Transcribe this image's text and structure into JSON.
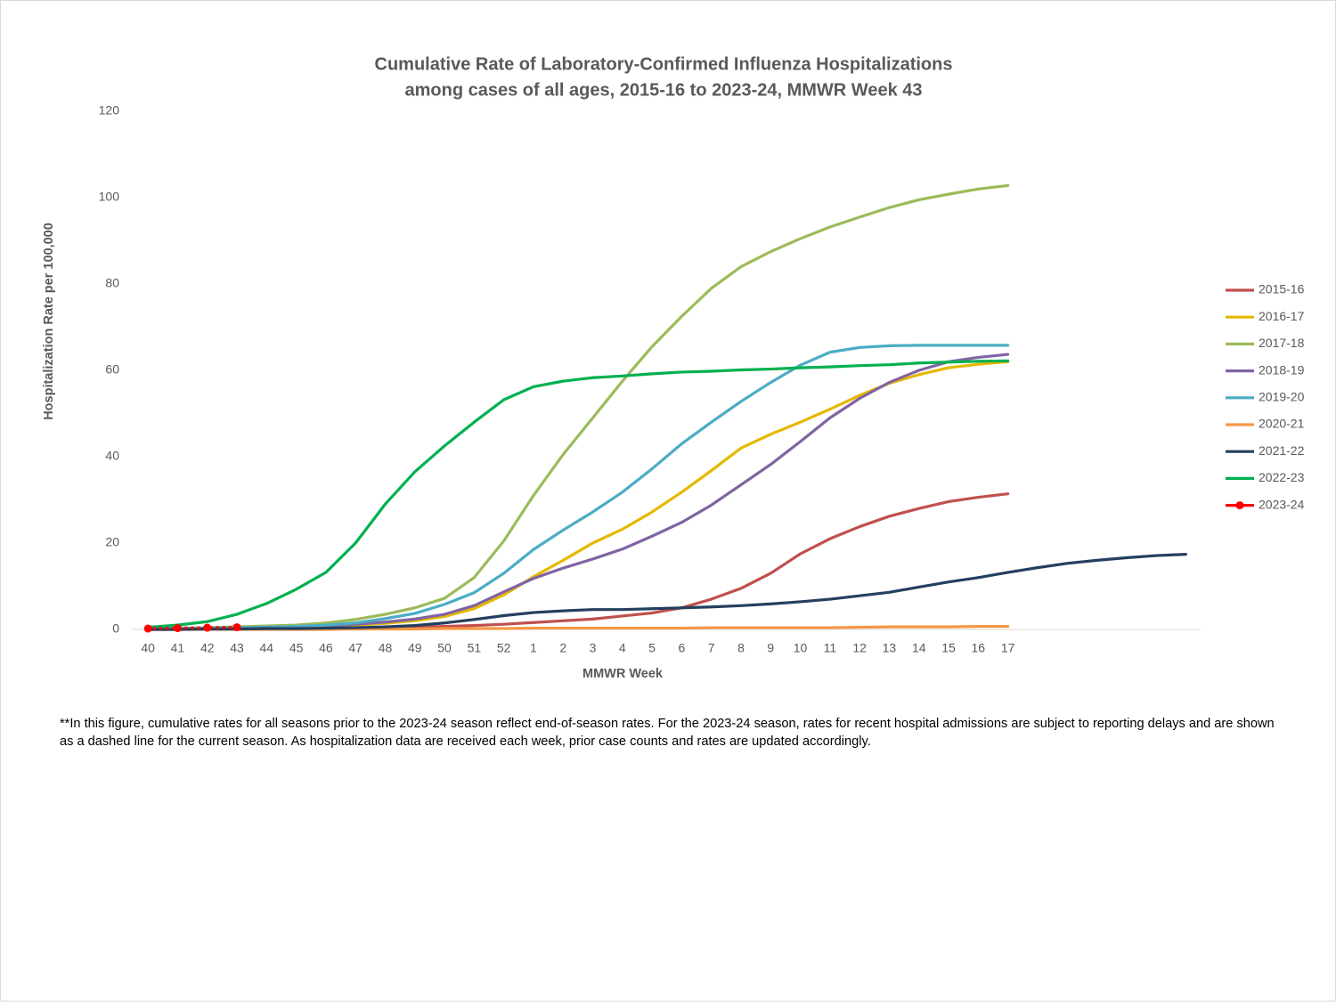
{
  "chart_data": {
    "type": "line",
    "title": [
      "Cumulative Rate of Laboratory-Confirmed Influenza Hospitalizations",
      "among cases of all ages, 2015-16 to 2023-24, MMWR  Week 43"
    ],
    "x_label": "MMWR Week",
    "y_label": "Hospitalization  Rate per 100,000",
    "note": "**In this figure, cumulative rates for all seasons prior to the 2023-24 season reflect end-of-season rates. For the 2023-24 season, rates for recent hospital admissions are subject to reporting delays and are shown as a dashed line for the current season. As hospitalization data are received each week, prior case counts and rates are updated accordingly.",
    "categories": [
      "40",
      "41",
      "42",
      "43",
      "44",
      "45",
      "46",
      "47",
      "48",
      "49",
      "50",
      "51",
      "52",
      "1",
      "2",
      "3",
      "4",
      "5",
      "6",
      "7",
      "8",
      "9",
      "10",
      "11",
      "12",
      "13",
      "14",
      "15",
      "16",
      "17",
      null,
      null,
      null,
      null,
      null,
      null
    ],
    "ylim": [
      0,
      120
    ],
    "yticks": [
      0,
      20,
      40,
      60,
      80,
      100,
      120
    ],
    "grid": false,
    "legend": "right",
    "series": [
      {
        "name": "2015-16",
        "color": "#c0504d",
        "values": [
          0,
          0,
          0.1,
          0.1,
          0.1,
          0.2,
          0.2,
          0.3,
          0.4,
          0.5,
          0.7,
          0.9,
          1.2,
          1.6,
          2,
          2.4,
          3.1,
          3.8,
          5,
          7,
          9.5,
          13,
          17.5,
          21,
          23.8,
          26.2,
          28,
          29.6,
          30.6,
          31.4,
          null,
          null,
          null,
          null,
          null,
          null
        ]
      },
      {
        "name": "2016-17",
        "color": "#e6b800",
        "values": [
          0.1,
          0.2,
          0.2,
          0.3,
          0.4,
          0.5,
          0.7,
          1,
          1.4,
          2,
          3,
          4.8,
          8,
          12.2,
          16,
          20,
          23.2,
          27.2,
          31.8,
          36.8,
          42,
          45.2,
          48,
          51,
          54.2,
          57,
          59,
          60.6,
          61.4,
          62,
          null,
          null,
          null,
          null,
          null,
          null
        ]
      },
      {
        "name": "2017-18",
        "color": "#9bbb59",
        "values": [
          0.2,
          0.3,
          0.4,
          0.6,
          0.8,
          1,
          1.5,
          2.3,
          3.5,
          5,
          7.2,
          12,
          20.5,
          31,
          40.5,
          49,
          57.5,
          65.5,
          72.5,
          79,
          84,
          87.5,
          90.5,
          93.2,
          95.5,
          97.7,
          99.5,
          100.8,
          102,
          102.8,
          null,
          null,
          null,
          null,
          null,
          null
        ]
      },
      {
        "name": "2018-19",
        "color": "#8064a2",
        "values": [
          0.1,
          0.2,
          0.2,
          0.3,
          0.5,
          0.6,
          0.8,
          1.2,
          1.7,
          2.4,
          3.5,
          5.5,
          8.7,
          11.8,
          14.2,
          16.3,
          18.6,
          21.6,
          24.8,
          28.8,
          33.5,
          38.2,
          43.5,
          49,
          53.5,
          57.2,
          60,
          62,
          63,
          63.7,
          null,
          null,
          null,
          null,
          null,
          null
        ]
      },
      {
        "name": "2019-20",
        "color": "#4bacc6",
        "values": [
          0.1,
          0.2,
          0.3,
          0.4,
          0.5,
          0.7,
          1,
          1.5,
          2.5,
          3.7,
          5.8,
          8.5,
          13,
          18.5,
          23,
          27.2,
          31.8,
          37.2,
          43,
          48,
          52.8,
          57.2,
          61.2,
          64.2,
          65.3,
          65.7,
          65.8,
          65.8,
          65.8,
          65.8,
          null,
          null,
          null,
          null,
          null,
          null
        ]
      },
      {
        "name": "2020-21",
        "color": "#f79646",
        "values": [
          0,
          0,
          0,
          0,
          0,
          0,
          0,
          0.1,
          0.1,
          0.1,
          0.2,
          0.2,
          0.2,
          0.3,
          0.3,
          0.3,
          0.3,
          0.3,
          0.3,
          0.4,
          0.4,
          0.4,
          0.4,
          0.4,
          0.5,
          0.6,
          0.6,
          0.6,
          0.7,
          0.7,
          null,
          null,
          null,
          null,
          null,
          null
        ]
      },
      {
        "name": "2021-22",
        "color": "#243f60",
        "values": [
          0,
          0,
          0.1,
          0.1,
          0.2,
          0.2,
          0.3,
          0.4,
          0.6,
          0.9,
          1.5,
          2.3,
          3.2,
          3.9,
          4.3,
          4.6,
          4.6,
          4.8,
          5,
          5.2,
          5.5,
          5.9,
          6.4,
          7,
          7.8,
          8.6,
          9.8,
          11,
          12,
          13.2,
          14.3,
          15.3,
          16,
          16.6,
          17.1,
          17.4
        ]
      },
      {
        "name": "2022-23",
        "color": "#00b050",
        "values": [
          0.5,
          1,
          1.8,
          3.5,
          6,
          9.3,
          13.2,
          20,
          29,
          36.5,
          42.5,
          48,
          53.2,
          56.2,
          57.5,
          58.3,
          58.7,
          59.2,
          59.6,
          59.8,
          60.1,
          60.3,
          60.6,
          60.8,
          61.1,
          61.3,
          61.7,
          61.9,
          62.1,
          62.2,
          null,
          null,
          null,
          null,
          null,
          null
        ]
      },
      {
        "name": "2023-24",
        "color": "#ff0000",
        "dash": "dotted",
        "marker": true,
        "values": [
          0.2,
          0.3,
          0.4,
          0.5,
          null,
          null,
          null,
          null,
          null,
          null,
          null,
          null,
          null,
          null,
          null,
          null,
          null,
          null,
          null,
          null,
          null,
          null,
          null,
          null,
          null,
          null,
          null,
          null,
          null,
          null,
          null,
          null,
          null,
          null,
          null,
          null
        ]
      }
    ]
  }
}
